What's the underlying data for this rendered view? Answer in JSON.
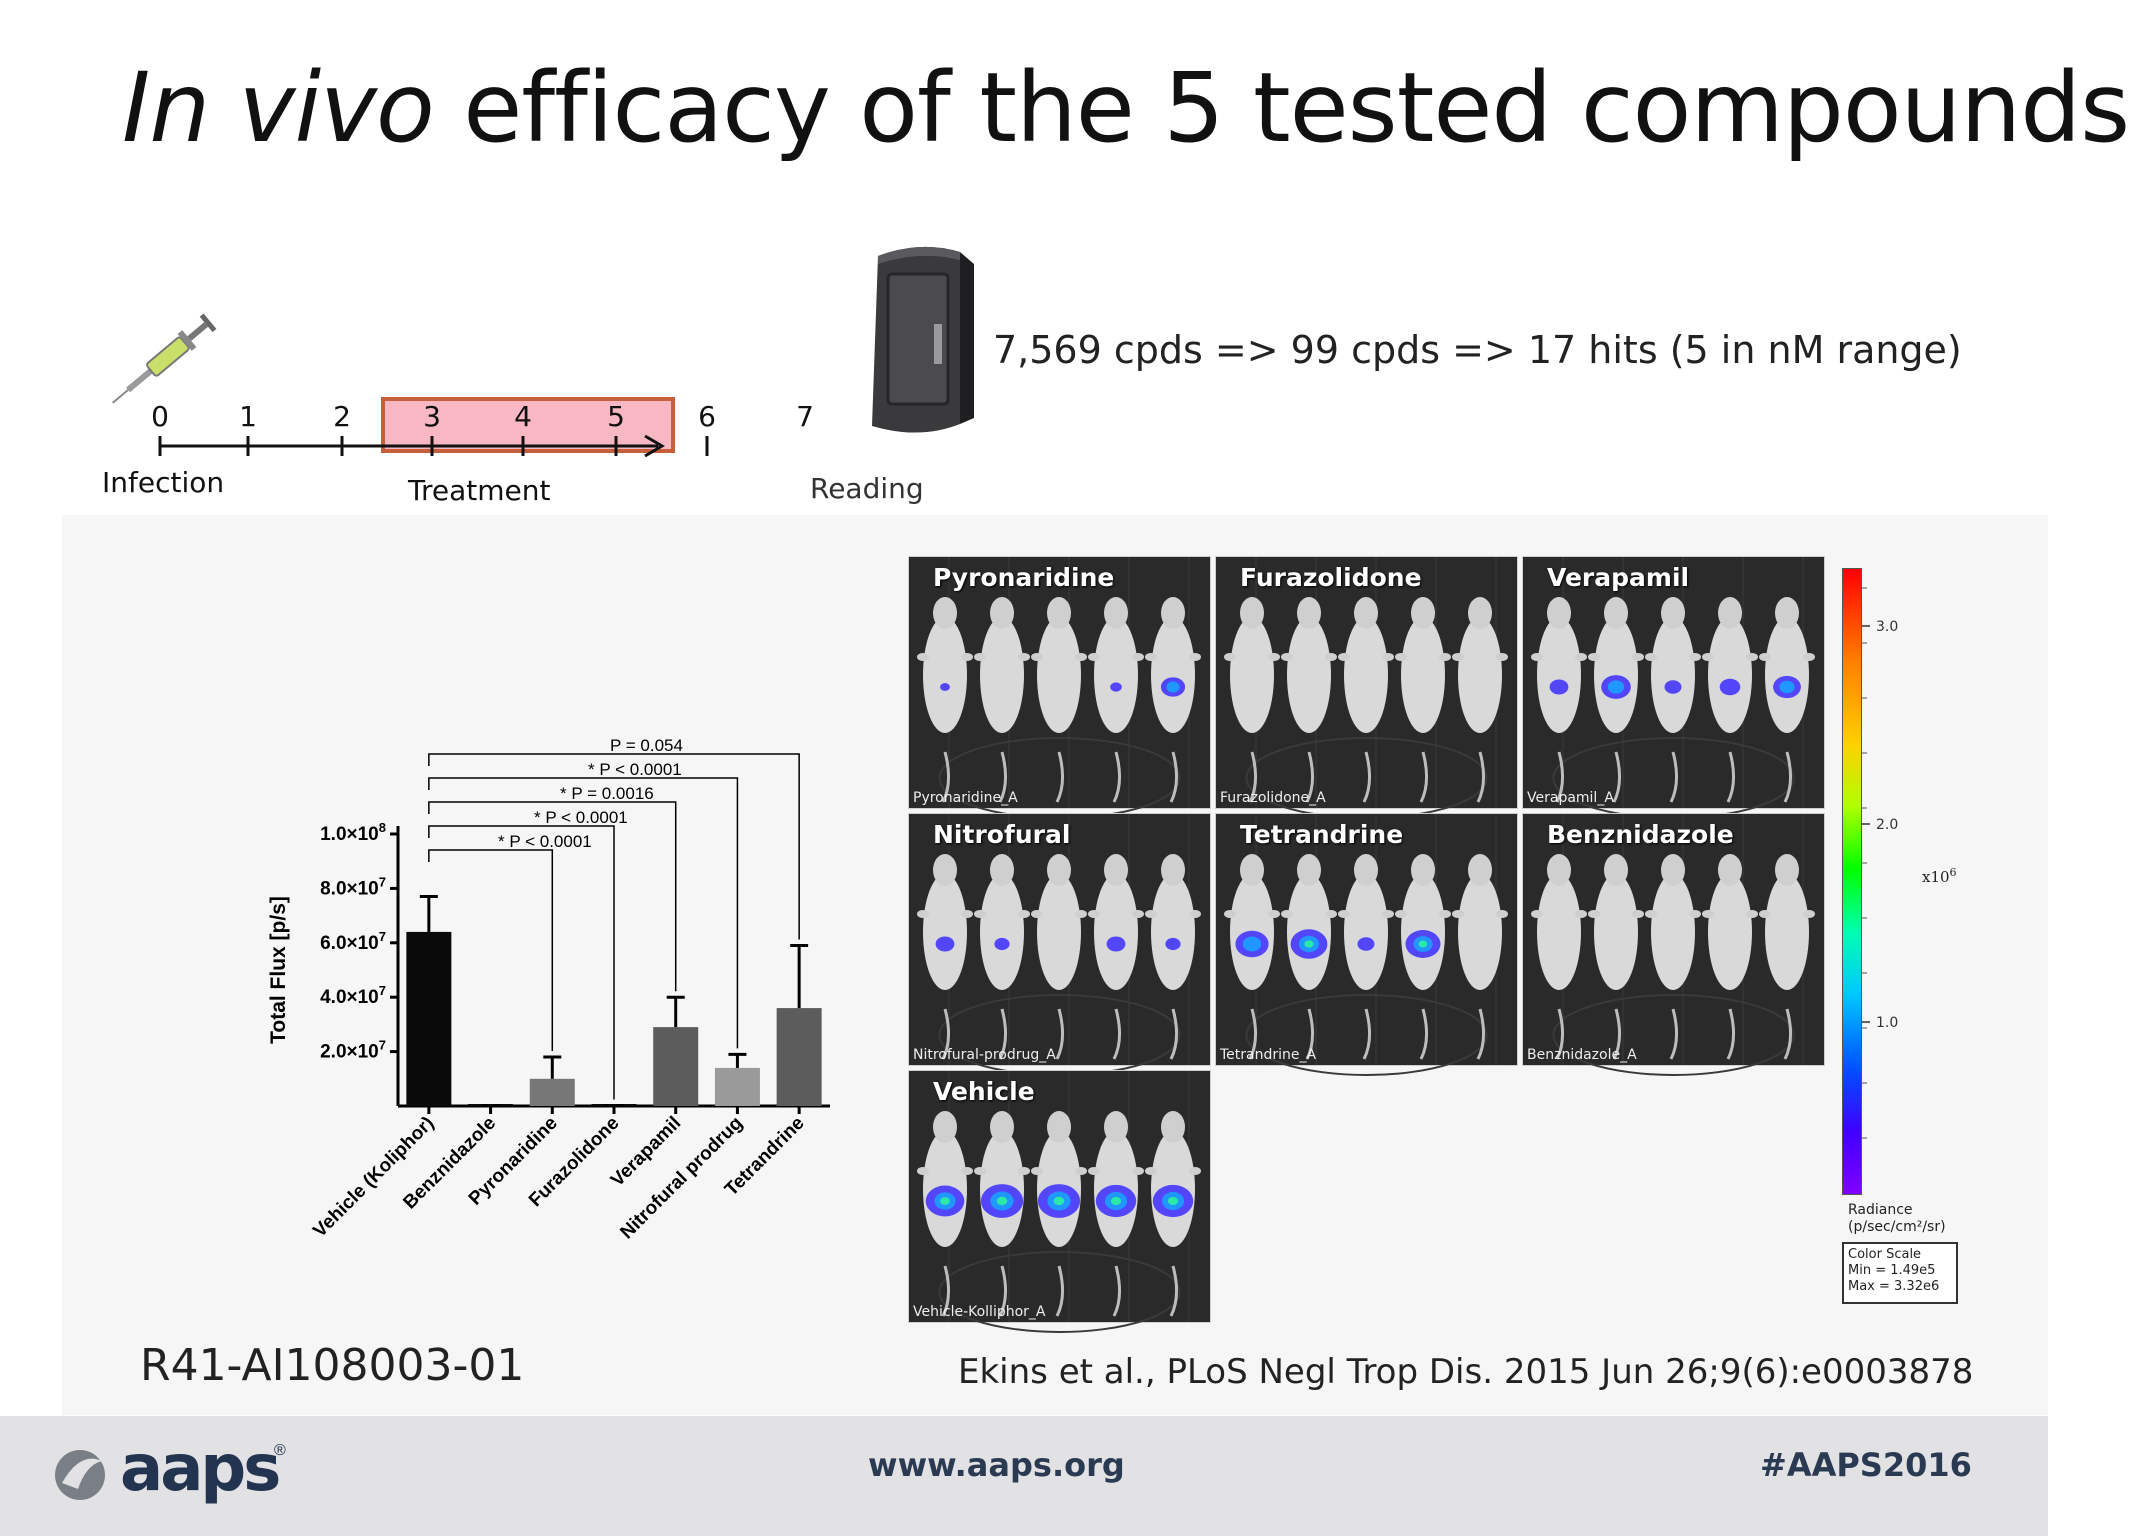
{
  "title": {
    "italic": "In vivo",
    "rest": " efficacy of the 5 tested compounds"
  },
  "timeline": {
    "ticks": [
      "0",
      "1",
      "2",
      "3",
      "4",
      "5",
      "6",
      "7"
    ],
    "labels": {
      "infection": "Infection",
      "treatment": "Treatment",
      "reading": "Reading"
    }
  },
  "screening_text": "7,569 cpds => 99 cpds => 17 hits (5 in nM range)",
  "chart_data": {
    "type": "bar",
    "categories": [
      "Vehicle (Koliphor)",
      "Benznidazole",
      "Pyronaridine",
      "Furazolidone",
      "Verapamil",
      "Nitrofural prodrug",
      "Tetrandrine"
    ],
    "values": [
      64000000,
      200000,
      10000000,
      200000,
      29000000,
      14000000,
      36000000
    ],
    "errors": [
      13000000,
      0,
      8000000,
      0,
      11000000,
      5000000,
      23000000
    ],
    "bar_colors": [
      "#0a0a0a",
      "#0a0a0a",
      "#777777",
      "#0a0a0a",
      "#5c5c5c",
      "#9a9a9a",
      "#5c5c5c"
    ],
    "ylabel": "Total Flux [p/s]",
    "yticks": [
      {
        "value": 20000000,
        "base": "2.0",
        "exp": "7"
      },
      {
        "value": 40000000,
        "base": "4.0",
        "exp": "7"
      },
      {
        "value": 60000000,
        "base": "6.0",
        "exp": "7"
      },
      {
        "value": 80000000,
        "base": "8.0",
        "exp": "7"
      },
      {
        "value": 100000000,
        "base": "1.0",
        "exp": "8"
      }
    ],
    "ylim": [
      0,
      100000000
    ],
    "significance": [
      {
        "label": "* P < 0.0001",
        "to": 2
      },
      {
        "label": "* P < 0.0001",
        "to": 3
      },
      {
        "label": "* P = 0.0016",
        "to": 4
      },
      {
        "label": "* P < 0.0001",
        "to": 5
      },
      {
        "label": "P = 0.054",
        "to": 6
      }
    ]
  },
  "panels": [
    {
      "title": "Pyronaridine",
      "caption": "Pyronaridine_A",
      "signal": [
        0.05,
        0.0,
        0.0,
        0.1,
        0.45
      ]
    },
    {
      "title": "Furazolidone",
      "caption": "Furazolidone_A",
      "signal": [
        0,
        0,
        0,
        0,
        0
      ]
    },
    {
      "title": "Verapamil",
      "caption": "Verapamil_A",
      "signal": [
        0.3,
        0.6,
        0.25,
        0.35,
        0.55
      ]
    },
    {
      "title": "Nitrofural",
      "caption": "Nitrofural-prodrug_A",
      "signal": [
        0.3,
        0.2,
        0,
        0.3,
        0.2
      ]
    },
    {
      "title": "Tetrandrine",
      "caption": "Tetrandrine_A",
      "signal": [
        0.7,
        0.8,
        0.25,
        0.75,
        0
      ]
    },
    {
      "title": "Benznidazole",
      "caption": "Benznidazole_A",
      "signal": [
        0,
        0,
        0,
        0,
        0
      ]
    },
    {
      "title": "Vehicle",
      "caption": "Vehicle-Kolliphor_A",
      "signal": [
        0.85,
        0.95,
        0.95,
        0.9,
        0.9
      ]
    }
  ],
  "colorbar": {
    "ticks": [
      "3.0",
      "2.0",
      "1.0"
    ],
    "multiplier_base": "x10",
    "multiplier_exp": "6",
    "unit_line1": "Radiance",
    "unit_line2": "(p/sec/cm²/sr)",
    "scale_title": "Color Scale",
    "scale_min": "Min = 1.49e5",
    "scale_max": "Max = 3.32e6"
  },
  "grant_id": "R41-AI108003-01",
  "citation": "Ekins et al., PLoS Negl Trop Dis. 2015 Jun 26;9(6):e0003878",
  "footer": {
    "logo_text": "aaps",
    "logo_reg": "®",
    "url": "www.aaps.org",
    "hashtag": "#AAPS2016"
  }
}
